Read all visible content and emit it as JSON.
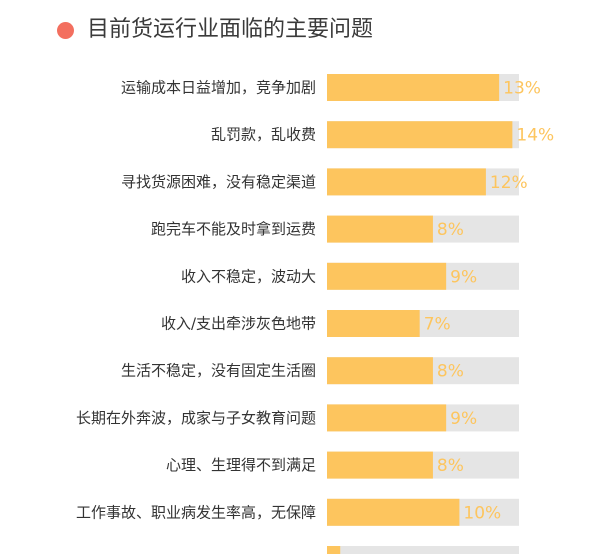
{
  "title": "目前货运行业面临的主要问题",
  "colors": {
    "bar": "#FDC55E",
    "track": "#E5E5E5",
    "value_label": "#FDC55E",
    "title_dot": "#F36F5F",
    "title_text": "#3A3A3A"
  },
  "chart_data": {
    "type": "bar",
    "orientation": "horizontal",
    "title": "目前货运行业面临的主要问题",
    "xlabel": "",
    "ylabel": "",
    "value_format": "percent",
    "xlim": [
      0,
      14.5
    ],
    "grid": false,
    "legend": "none",
    "categories": [
      "运输成本日益增加，竞争加剧",
      "乱罚款，乱收费",
      "寻找货源困难，没有稳定渠道",
      "跑完车不能及时拿到运费",
      "收入不稳定，波动大",
      "收入/支出牵涉灰色地带",
      "生活不稳定，没有固定生活圈",
      "长期在外奔波，成家与子女教育问题",
      "心理、生理得不到满足",
      "工作事故、职业病发生率高，无保障",
      ""
    ],
    "values": [
      13,
      14,
      12,
      8,
      9,
      7,
      8,
      9,
      8,
      10,
      1
    ],
    "labels": [
      "13%",
      "14%",
      "12%",
      "8%",
      "9%",
      "7%",
      "8%",
      "9%",
      "8%",
      "10%",
      ""
    ]
  }
}
